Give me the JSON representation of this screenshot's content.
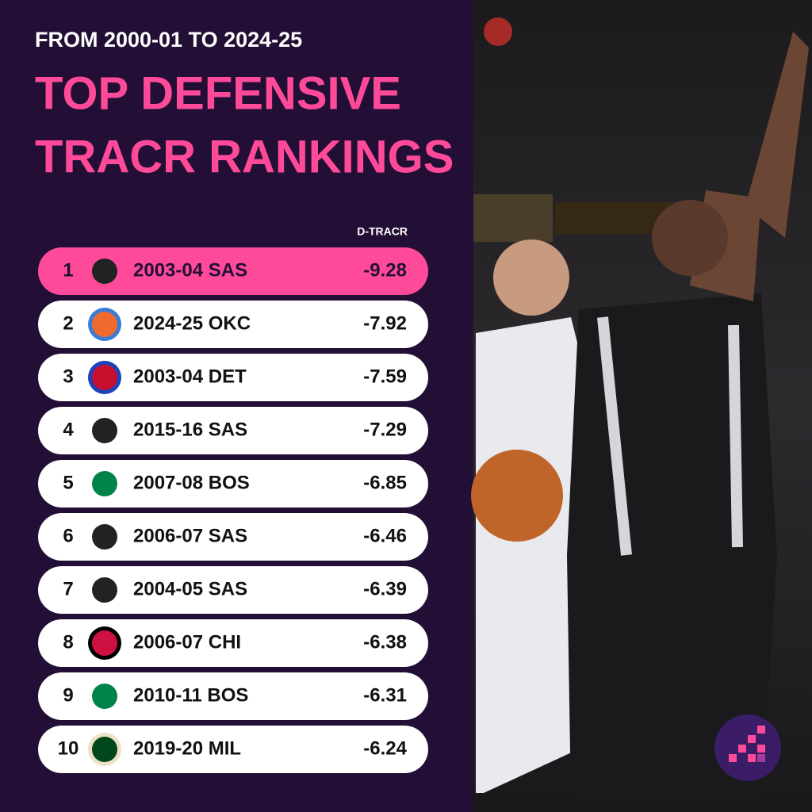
{
  "header": {
    "subtitle": "FROM 2000-01 TO 2024-25",
    "title_lines": [
      "TOP DEFENSIVE",
      "TRACR RANKINGS"
    ]
  },
  "table": {
    "column_header": "D-TRACR",
    "rows": [
      {
        "rank": 1,
        "team": "2003-04 SAS",
        "value": -9.28
      },
      {
        "rank": 2,
        "team": "2024-25 OKC",
        "value": -7.92
      },
      {
        "rank": 3,
        "team": "2003-04 DET",
        "value": -7.59
      },
      {
        "rank": 4,
        "team": "2015-16 SAS",
        "value": -7.29
      },
      {
        "rank": 5,
        "team": "2007-08 BOS",
        "value": -6.85
      },
      {
        "rank": 6,
        "team": "2006-07 SAS",
        "value": -6.46
      },
      {
        "rank": 7,
        "team": "2004-05 SAS",
        "value": -6.39
      },
      {
        "rank": 8,
        "team": "2006-07 CHI",
        "value": -6.38
      },
      {
        "rank": 9,
        "team": "2010-11 BOS",
        "value": -6.31
      },
      {
        "rank": 10,
        "team": "2019-20 MIL",
        "value": -6.24
      }
    ]
  }
}
